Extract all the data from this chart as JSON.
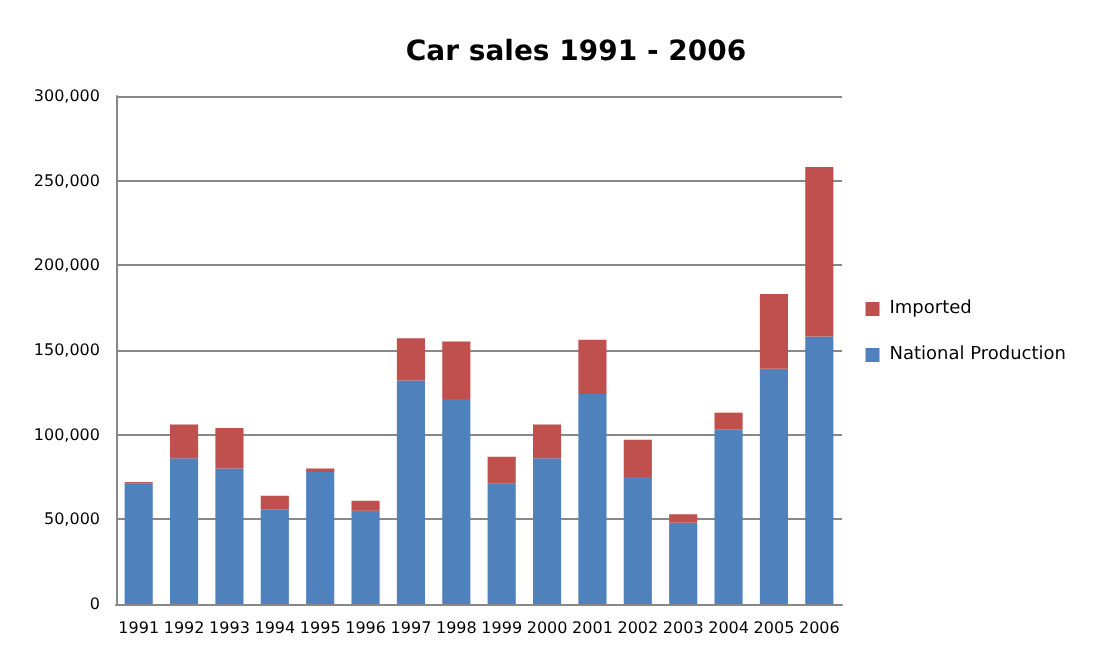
{
  "chart_data": {
    "type": "bar",
    "title": "Car sales 1991 - 2006",
    "stacked": true,
    "categories": [
      "1991",
      "1992",
      "1993",
      "1994",
      "1995",
      "1996",
      "1997",
      "1998",
      "1999",
      "2000",
      "2001",
      "2002",
      "2003",
      "2004",
      "2005",
      "2006"
    ],
    "series": [
      {
        "name": "National Production",
        "color": "#4f81bd",
        "values": [
          71000,
          86000,
          80000,
          56000,
          78000,
          55000,
          132000,
          121000,
          71000,
          86000,
          124000,
          75000,
          48000,
          103000,
          139000,
          158000
        ]
      },
      {
        "name": "Imported",
        "color": "#c0504d",
        "values": [
          1000,
          20000,
          24000,
          8000,
          2000,
          6000,
          25000,
          34000,
          16000,
          20000,
          32000,
          22000,
          5000,
          10000,
          44000,
          100000
        ]
      }
    ],
    "ylim": [
      0,
      300000
    ],
    "yticks": [
      0,
      {
        "value": 50000,
        "label": "50,000"
      },
      {
        "value": 100000,
        "label": "100,000"
      },
      {
        "value": 150000,
        "label": "150,000"
      },
      {
        "value": 200000,
        "label": "200,000"
      },
      {
        "value": 250000,
        "label": "250,000"
      },
      {
        "value": 300000,
        "label": "300,000"
      }
    ],
    "grid": "y",
    "legend": "right"
  }
}
